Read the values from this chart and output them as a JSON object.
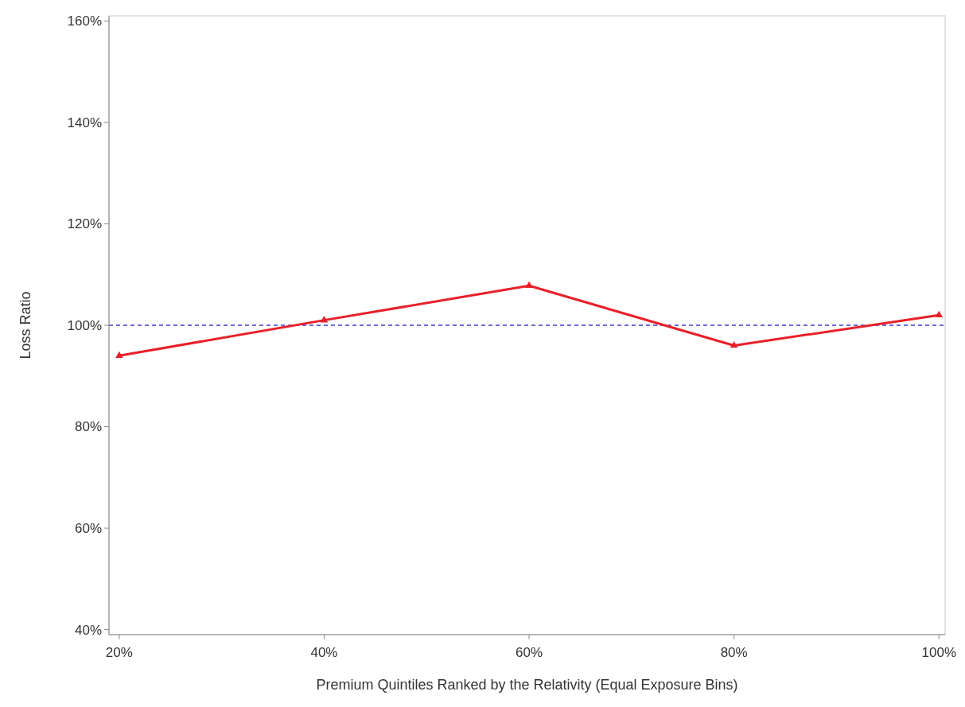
{
  "chart_data": {
    "type": "line",
    "xlabel": "Premium Quintiles Ranked by the Relativity (Equal Exposure Bins)",
    "ylabel": "Loss Ratio",
    "x": [
      20,
      40,
      60,
      80,
      100
    ],
    "series": [
      {
        "color": "#e8202a",
        "values": [
          94,
          101,
          107.8,
          96,
          102
        ]
      }
    ],
    "xlim": [
      19,
      100.6
    ],
    "ylim": [
      39,
      161
    ],
    "xticks": [
      {
        "value": 20,
        "label": "20%"
      },
      {
        "value": 40,
        "label": "40%"
      },
      {
        "value": 60,
        "label": "60%"
      },
      {
        "value": 80,
        "label": "80%"
      },
      {
        "value": 100,
        "label": "100%"
      }
    ],
    "yticks": [
      {
        "value": 40,
        "label": "40%"
      },
      {
        "value": 60,
        "label": "60%"
      },
      {
        "value": 80,
        "label": "80%"
      },
      {
        "value": 100,
        "label": "100%"
      },
      {
        "value": 120,
        "label": "120%"
      },
      {
        "value": 140,
        "label": "140%"
      },
      {
        "value": 160,
        "label": "160%"
      }
    ],
    "ref_lines": [
      {
        "axis": "y",
        "value": 100,
        "color": "#3a3ad0",
        "line_style": "dashed"
      }
    ],
    "marker": "triangle",
    "line_style": "solid",
    "grid": false
  }
}
